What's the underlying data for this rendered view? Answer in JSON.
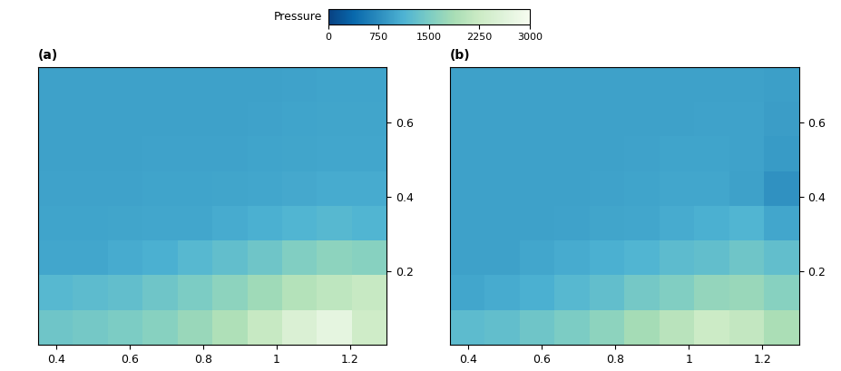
{
  "colorbar": {
    "label": "Pressure",
    "range": [
      0,
      3000
    ],
    "ticks": [
      0,
      750,
      1500,
      2250,
      3000
    ]
  },
  "chart_data": [
    {
      "type": "heatmap",
      "title": "(a)",
      "xlim": [
        0.35,
        1.3
      ],
      "ylim": [
        0,
        0.75
      ],
      "xticks": [
        0.4,
        0.6,
        0.8,
        1,
        1.2
      ],
      "yticks": [
        0.2,
        0.4,
        0.6
      ],
      "x_edges": [
        0.35,
        0.445,
        0.54,
        0.635,
        0.73,
        0.825,
        0.92,
        1.015,
        1.11,
        1.205,
        1.3
      ],
      "y_edges": [
        0,
        0.094,
        0.188,
        0.281,
        0.375,
        0.469,
        0.563,
        0.656,
        0.75
      ],
      "cells": [
        [
          1400,
          1450,
          1500,
          1600,
          1750,
          1950,
          2200,
          2500,
          2700,
          2300
        ],
        [
          1200,
          1250,
          1300,
          1400,
          1500,
          1650,
          1800,
          2000,
          2100,
          2200
        ],
        [
          1000,
          1000,
          1050,
          1100,
          1200,
          1300,
          1400,
          1550,
          1650,
          1600
        ],
        [
          980,
          980,
          990,
          1000,
          1000,
          1050,
          1100,
          1150,
          1200,
          1150
        ],
        [
          970,
          970,
          970,
          980,
          980,
          990,
          1000,
          1020,
          1050,
          1050
        ],
        [
          960,
          960,
          960,
          970,
          970,
          970,
          980,
          990,
          1000,
          1000
        ],
        [
          960,
          960,
          960,
          960,
          960,
          960,
          970,
          980,
          990,
          990
        ],
        [
          950,
          950,
          950,
          950,
          950,
          960,
          960,
          970,
          980,
          980
        ]
      ]
    },
    {
      "type": "heatmap",
      "title": "(b)",
      "xlim": [
        0.35,
        1.3
      ],
      "ylim": [
        0,
        0.75
      ],
      "xticks": [
        0.4,
        0.6,
        0.8,
        1,
        1.2
      ],
      "yticks": [
        0.2,
        0.4,
        0.6
      ],
      "x_edges": [
        0.35,
        0.445,
        0.54,
        0.635,
        0.73,
        0.825,
        0.92,
        1.015,
        1.11,
        1.205,
        1.3
      ],
      "y_edges": [
        0,
        0.094,
        0.188,
        0.281,
        0.375,
        0.469,
        0.563,
        0.656,
        0.75
      ],
      "cells": [
        [
          1250,
          1300,
          1400,
          1500,
          1650,
          1850,
          2050,
          2250,
          2150,
          1900
        ],
        [
          1000,
          1050,
          1100,
          1200,
          1300,
          1450,
          1550,
          1700,
          1750,
          1600
        ],
        [
          950,
          950,
          1000,
          1050,
          1100,
          1150,
          1250,
          1300,
          1400,
          1300
        ],
        [
          950,
          950,
          960,
          970,
          990,
          1000,
          1050,
          1100,
          1150,
          1000
        ],
        [
          950,
          950,
          950,
          960,
          970,
          980,
          1000,
          1000,
          950,
          800
        ],
        [
          950,
          950,
          950,
          950,
          960,
          970,
          980,
          980,
          970,
          900
        ],
        [
          950,
          950,
          950,
          950,
          950,
          960,
          960,
          970,
          970,
          920
        ],
        [
          950,
          950,
          950,
          950,
          950,
          950,
          960,
          960,
          960,
          930
        ]
      ]
    }
  ]
}
